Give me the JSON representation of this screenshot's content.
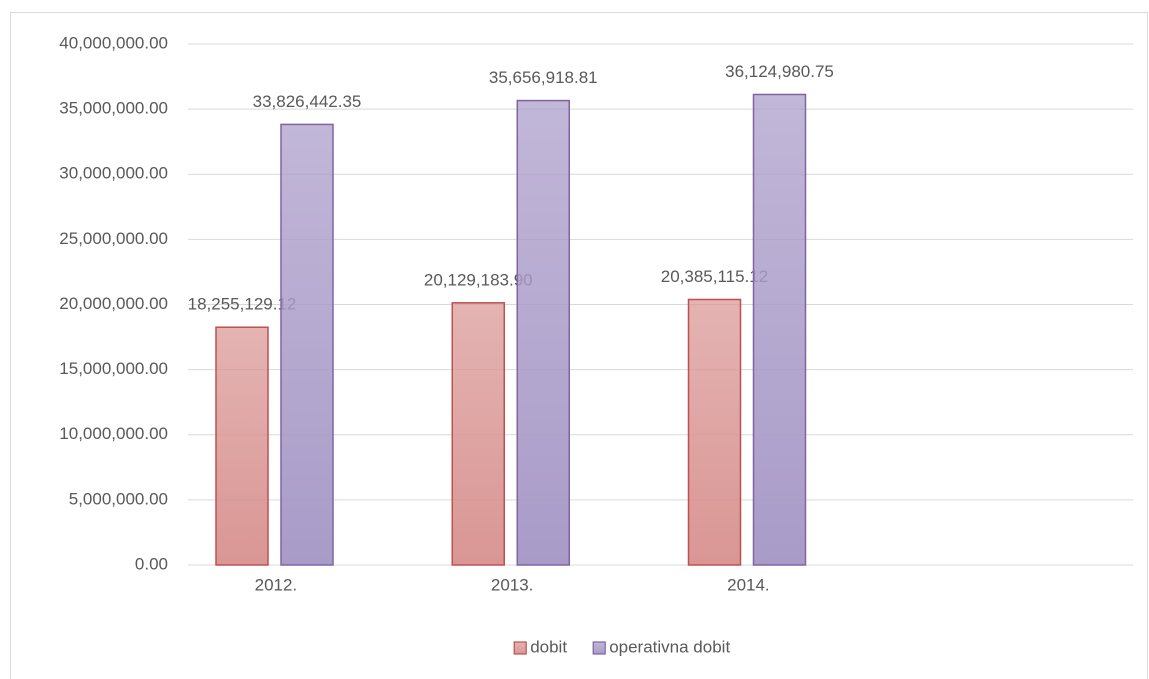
{
  "chart_data": {
    "type": "bar",
    "categories": [
      "2012.",
      "2013.",
      "2014.",
      null
    ],
    "series": [
      {
        "name": "dobit",
        "color": "#d99694",
        "edgecolor": "#c0504d",
        "values": [
          18255129.12,
          20129183.9,
          20385115.12,
          null
        ],
        "value_labels": [
          "18,255,129.12",
          "20,129,183.90",
          "20,385,115.12",
          null
        ]
      },
      {
        "name": "operativna dobit",
        "color": "#a99bc8",
        "edgecolor": "#8064a2",
        "values": [
          33826442.35,
          35656918.81,
          36124980.75,
          null
        ],
        "value_labels": [
          "33,826,442.35",
          "35,656,918.81",
          "36,124,980.75",
          null
        ]
      }
    ],
    "ylim": [
      0,
      40000000
    ],
    "yticks": [
      {
        "value": 0,
        "label": "0.00"
      },
      {
        "value": 5000000,
        "label": "5,000,000.00"
      },
      {
        "value": 10000000,
        "label": "10,000,000.00"
      },
      {
        "value": 15000000,
        "label": "15,000,000.00"
      },
      {
        "value": 20000000,
        "label": "20,000,000.00"
      },
      {
        "value": 25000000,
        "label": "25,000,000.00"
      },
      {
        "value": 30000000,
        "label": "30,000,000.00"
      },
      {
        "value": 35000000,
        "label": "35,000,000.00"
      },
      {
        "value": 40000000,
        "label": "40,000,000.00"
      }
    ],
    "grid": true,
    "legend": "bottom"
  }
}
